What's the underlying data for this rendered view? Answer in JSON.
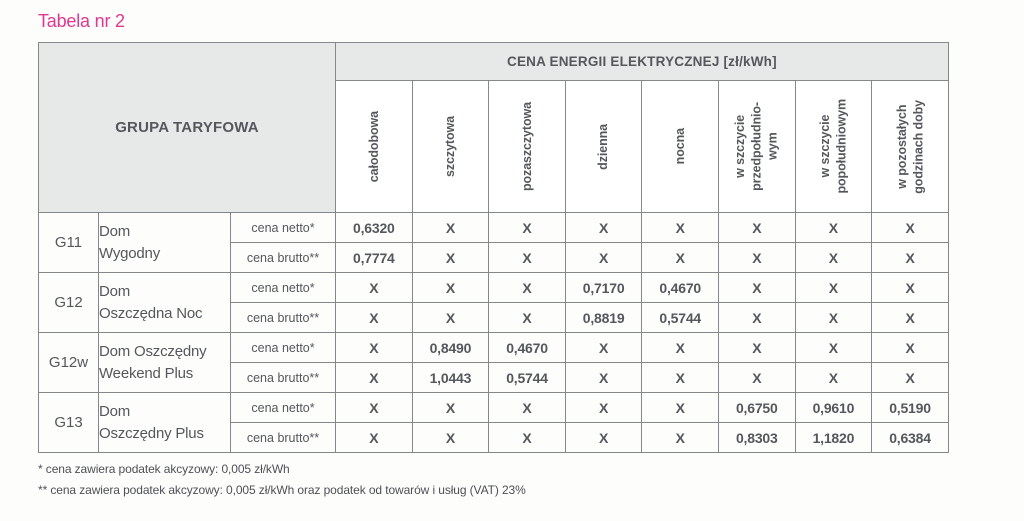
{
  "title": "Tabela nr 2",
  "colors": {
    "title_pink": "#e0378f",
    "header_bg": "#e7e9e9",
    "border_gray": "#85888b",
    "text_dark": "#54575c"
  },
  "table": {
    "group_header": "GRUPA TARYFOWA",
    "price_header": "CENA ENERGII ELEKTRYCZNEJ [zł/kWh]",
    "columns": [
      "całodobowa",
      "szczytowa",
      "pozaszczytowa",
      "dzienna",
      "nocna",
      "w szczycie\nprzedpołudnio-\nwym",
      "w szczycie\npopołudniowym",
      "w pozostałych\ngodzinach doby"
    ],
    "groups": [
      {
        "code": "G11",
        "name": "Dom\nWygodny",
        "rows": [
          {
            "label": "cena netto*",
            "values": [
              "0,6320",
              "X",
              "X",
              "X",
              "X",
              "X",
              "X",
              "X"
            ]
          },
          {
            "label": "cena brutto**",
            "values": [
              "0,7774",
              "X",
              "X",
              "X",
              "X",
              "X",
              "X",
              "X"
            ]
          }
        ]
      },
      {
        "code": "G12",
        "name": "Dom\nOszczędna Noc",
        "rows": [
          {
            "label": "cena netto*",
            "values": [
              "X",
              "X",
              "X",
              "0,7170",
              "0,4670",
              "X",
              "X",
              "X"
            ]
          },
          {
            "label": "cena brutto**",
            "values": [
              "X",
              "X",
              "X",
              "0,8819",
              "0,5744",
              "X",
              "X",
              "X"
            ]
          }
        ]
      },
      {
        "code": "G12w",
        "name": "Dom Oszczędny\nWeekend Plus",
        "rows": [
          {
            "label": "cena netto*",
            "values": [
              "X",
              "0,8490",
              "0,4670",
              "X",
              "X",
              "X",
              "X",
              "X"
            ]
          },
          {
            "label": "cena brutto**",
            "values": [
              "X",
              "1,0443",
              "0,5744",
              "X",
              "X",
              "X",
              "X",
              "X"
            ]
          }
        ]
      },
      {
        "code": "G13",
        "name": "Dom\nOszczędny Plus",
        "rows": [
          {
            "label": "cena netto*",
            "values": [
              "X",
              "X",
              "X",
              "X",
              "X",
              "0,6750",
              "0,9610",
              "0,5190"
            ]
          },
          {
            "label": "cena brutto**",
            "values": [
              "X",
              "X",
              "X",
              "X",
              "X",
              "0,8303",
              "1,1820",
              "0,6384"
            ]
          }
        ]
      }
    ],
    "footnotes": [
      "* cena zawiera podatek akcyzowy: 0,005 zł/kWh",
      "** cena zawiera podatek akcyzowy: 0,005 zł/kWh oraz podatek od towarów i usług (VAT) 23%"
    ]
  }
}
